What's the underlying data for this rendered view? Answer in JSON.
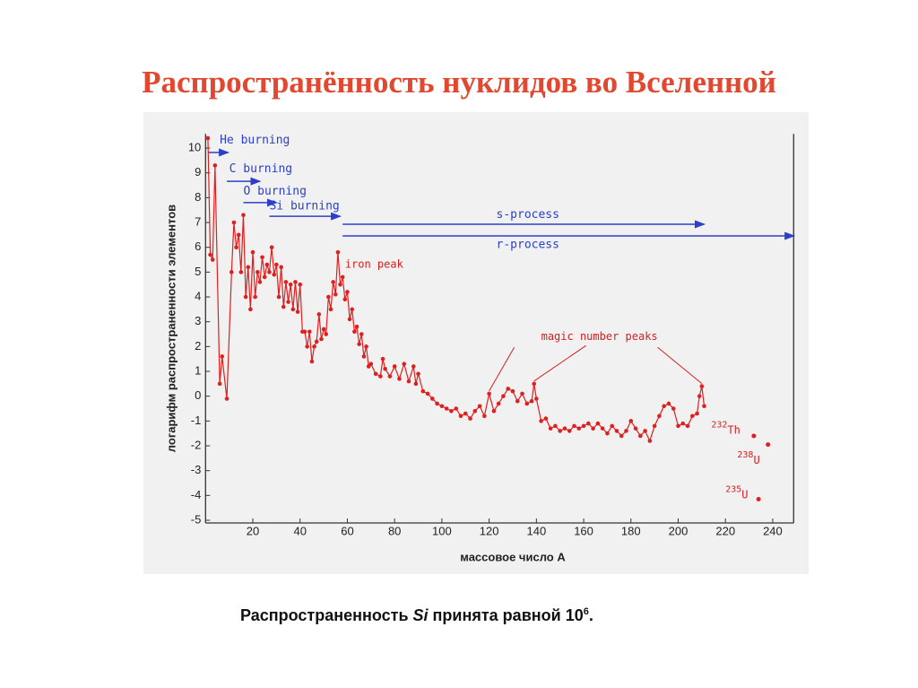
{
  "slide_title": "Распространённость нуклидов во Вселенной",
  "chart_data": {
    "type": "line",
    "y_label": "логарифм распространенности элементов",
    "x_label": "массовое число А",
    "color": "#dd2020",
    "xlim": [
      0,
      250
    ],
    "ylim": [
      -5,
      10.5
    ],
    "xticks": [
      20,
      40,
      60,
      80,
      100,
      120,
      140,
      160,
      180,
      200,
      220,
      240
    ],
    "yticks": [
      -5,
      -4,
      -3,
      -2,
      -1,
      0,
      1,
      2,
      3,
      4,
      5,
      6,
      7,
      8,
      9,
      10
    ],
    "x": [
      1,
      2,
      3,
      4,
      6,
      7,
      9,
      11,
      12,
      13,
      14,
      15,
      16,
      17,
      18,
      19,
      20,
      21,
      22,
      23,
      24,
      25,
      26,
      27,
      28,
      29,
      30,
      31,
      32,
      33,
      34,
      35,
      36,
      37,
      38,
      39,
      40,
      41,
      42,
      43,
      44,
      45,
      46,
      47,
      48,
      49,
      50,
      51,
      52,
      53,
      54,
      55,
      56,
      57,
      58,
      59,
      60,
      61,
      62,
      63,
      64,
      65,
      66,
      67,
      68,
      69,
      70,
      72,
      74,
      75,
      76,
      78,
      80,
      82,
      84,
      86,
      88,
      89,
      90,
      92,
      94,
      96,
      98,
      100,
      102,
      104,
      106,
      108,
      110,
      112,
      114,
      116,
      118,
      120,
      122,
      124,
      126,
      128,
      130,
      132,
      134,
      136,
      138,
      139,
      140,
      142,
      144,
      146,
      148,
      150,
      152,
      154,
      156,
      158,
      160,
      162,
      164,
      166,
      168,
      170,
      172,
      174,
      176,
      178,
      180,
      182,
      184,
      186,
      188,
      190,
      192,
      194,
      196,
      198,
      200,
      202,
      204,
      206,
      208,
      209,
      210,
      211
    ],
    "values": [
      10.4,
      5.7,
      5.5,
      9.3,
      0.5,
      1.6,
      -0.1,
      5.0,
      7.0,
      6.0,
      6.5,
      5.0,
      7.3,
      4.0,
      5.2,
      3.5,
      5.8,
      4.0,
      5.0,
      4.6,
      5.6,
      4.8,
      5.3,
      5.0,
      6.0,
      4.9,
      5.3,
      4.0,
      5.2,
      3.6,
      4.6,
      3.8,
      4.5,
      3.5,
      4.6,
      3.4,
      4.5,
      2.6,
      2.6,
      2.0,
      2.6,
      1.4,
      2.0,
      2.2,
      3.3,
      2.3,
      2.7,
      2.5,
      4.0,
      3.5,
      4.6,
      4.1,
      5.8,
      4.5,
      4.8,
      3.9,
      4.2,
      3.1,
      3.5,
      2.6,
      2.8,
      2.1,
      2.5,
      1.6,
      2.0,
      1.2,
      1.3,
      0.9,
      0.8,
      1.5,
      1.1,
      0.8,
      1.2,
      0.7,
      1.3,
      0.6,
      1.2,
      0.5,
      0.9,
      0.2,
      0.1,
      -0.1,
      -0.3,
      -0.4,
      -0.5,
      -0.6,
      -0.5,
      -0.8,
      -0.7,
      -0.9,
      -0.6,
      -0.4,
      -0.8,
      0.1,
      -0.6,
      -0.3,
      0.0,
      0.3,
      0.2,
      -0.2,
      0.1,
      -0.3,
      -0.2,
      0.5,
      -0.1,
      -1.0,
      -0.9,
      -1.3,
      -1.2,
      -1.4,
      -1.3,
      -1.4,
      -1.2,
      -1.3,
      -1.2,
      -1.1,
      -1.3,
      -1.1,
      -1.3,
      -1.5,
      -1.2,
      -1.4,
      -1.6,
      -1.4,
      -1.0,
      -1.3,
      -1.6,
      -1.4,
      -1.8,
      -1.2,
      -0.8,
      -0.4,
      -0.3,
      -0.5,
      -1.2,
      -1.1,
      -1.2,
      -0.8,
      -0.7,
      0.0,
      0.4,
      -0.4
    ],
    "annotations": [
      {
        "text": "He burning",
        "x": [
          1,
          9.6
        ],
        "y": 9.82,
        "label_at": [
          6,
          10.3
        ]
      },
      {
        "text": "C burning",
        "x": [
          9,
          23
        ],
        "y": 8.66,
        "label_at": [
          10,
          9.15
        ]
      },
      {
        "text": "O burning",
        "x": [
          16,
          30
        ],
        "y": 7.8,
        "label_at": [
          16,
          8.25
        ]
      },
      {
        "text": "Si burning",
        "x": [
          27,
          57
        ],
        "y": 7.25,
        "label_at": [
          27,
          7.65
        ]
      },
      {
        "text": "s-process",
        "x": [
          58,
          211
        ],
        "y": 6.93,
        "label_at": [
          123,
          7.3
        ]
      },
      {
        "text": "r-process",
        "x": [
          58,
          249
        ],
        "y": 6.46,
        "label_at": [
          123,
          6.1
        ]
      }
    ],
    "labels": [
      {
        "text": "iron peak",
        "label_at": [
          59,
          5.3
        ]
      },
      {
        "text": "magic number peaks",
        "label_at": [
          142,
          2.4
        ],
        "pointers": [
          [
            120,
            0.1
          ],
          [
            139,
            0.5
          ],
          [
            210,
            0.4
          ]
        ]
      }
    ],
    "isotopes": [
      {
        "mass": "232",
        "symbol": "Th",
        "point": [
          232,
          -1.6
        ],
        "label_at": [
          214,
          -1.3
        ]
      },
      {
        "mass": "238",
        "symbol": "U",
        "point": [
          238,
          -1.95
        ],
        "label_at": [
          225,
          -2.5
        ]
      },
      {
        "mass": "235",
        "symbol": "U",
        "point": [
          234,
          -4.15
        ],
        "label_at": [
          220,
          -3.9
        ]
      }
    ]
  },
  "footnote": [
    "Распространенность ",
    "Si",
    " принята равной 10",
    "6",
    "."
  ]
}
